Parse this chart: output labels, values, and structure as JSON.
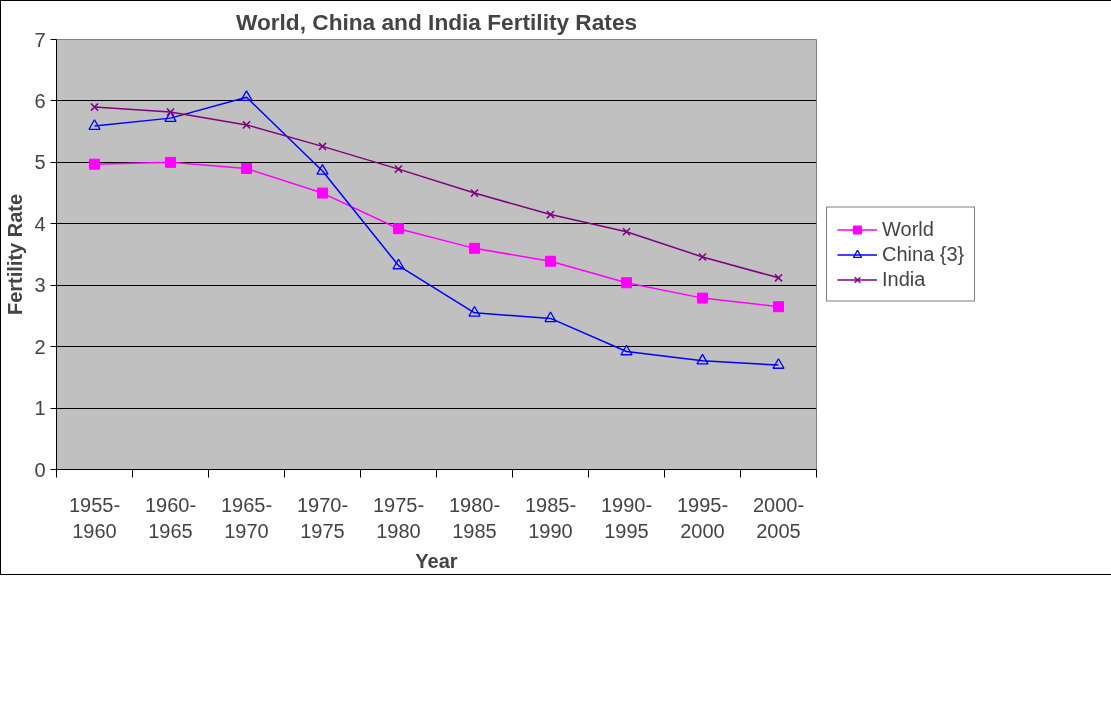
{
  "chart_data": {
    "type": "line",
    "title": "World, China and India Fertility Rates",
    "xlabel": "Year",
    "ylabel": "Fertility Rate",
    "categories": [
      "1955-\n1960",
      "1960-\n1965",
      "1965-\n1970",
      "1970-\n1975",
      "1975-\n1980",
      "1980-\n1985",
      "1985-\n1990",
      "1990-\n1995",
      "1995-\n2000",
      "2000-\n2005"
    ],
    "series": [
      {
        "name": "World",
        "color": "#ff00ff",
        "marker": "square",
        "values": [
          4.97,
          5.0,
          4.9,
          4.5,
          3.92,
          3.6,
          3.39,
          3.04,
          2.79,
          2.65
        ]
      },
      {
        "name": "China {3}",
        "color": "#0000ff",
        "marker": "triangle",
        "values": [
          5.59,
          5.72,
          6.06,
          4.86,
          3.32,
          2.55,
          2.46,
          1.92,
          1.77,
          1.7
        ]
      },
      {
        "name": "India",
        "color": "#800080",
        "marker": "cross",
        "values": [
          5.9,
          5.82,
          5.61,
          5.26,
          4.89,
          4.5,
          4.15,
          3.87,
          3.46,
          3.12
        ]
      }
    ],
    "ylim": [
      0,
      7
    ],
    "yticks": [
      0,
      1,
      2,
      3,
      4,
      5,
      6,
      7
    ],
    "grid": "y",
    "legend": "right",
    "line_style": "solid"
  }
}
